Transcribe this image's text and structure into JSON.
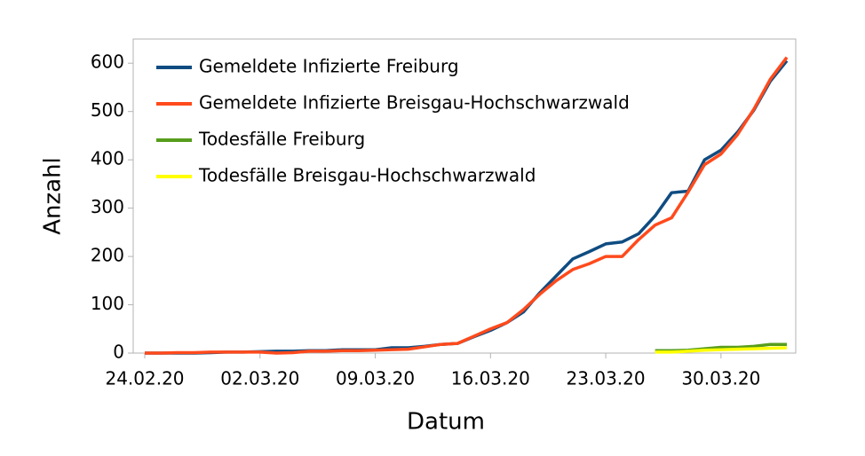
{
  "chart_data": {
    "type": "line",
    "xlabel": "Datum",
    "ylabel": "Anzahl",
    "categories": [
      "24.02.20",
      null,
      null,
      null,
      null,
      null,
      null,
      "02.03.20",
      null,
      null,
      null,
      null,
      null,
      null,
      "09.03.20",
      null,
      null,
      null,
      null,
      null,
      null,
      "16.03.20",
      null,
      null,
      null,
      null,
      null,
      null,
      "23.03.20",
      null,
      null,
      null,
      null,
      null,
      null,
      "30.03.20",
      null,
      null,
      null,
      null
    ],
    "series": [
      {
        "name": "Gemeldete Infizierte Freiburg",
        "color": "#0f4c81",
        "values": [
          0,
          0,
          0,
          0,
          1,
          2,
          2,
          3,
          4,
          4,
          5,
          5,
          7,
          7,
          7,
          11,
          11,
          14,
          18,
          20,
          34,
          47,
          63,
          85,
          125,
          160,
          195,
          210,
          226,
          230,
          247,
          284,
          332,
          335,
          400,
          420,
          457,
          503,
          563,
          605
        ]
      },
      {
        "name": "Gemeldete Infizierte Breisgau-Hochschwarzwald",
        "color": "#ff4a1c",
        "values": [
          0,
          0,
          1,
          1,
          2,
          2,
          2,
          2,
          0,
          1,
          4,
          4,
          5,
          5,
          6,
          7,
          8,
          13,
          18,
          20,
          35,
          50,
          63,
          90,
          122,
          150,
          173,
          185,
          200,
          200,
          235,
          265,
          280,
          333,
          390,
          412,
          452,
          505,
          567,
          612
        ]
      },
      {
        "name": "Todesfälle Freiburg",
        "color": "#579d1c",
        "values": [
          null,
          null,
          null,
          null,
          null,
          null,
          null,
          null,
          null,
          null,
          null,
          null,
          null,
          null,
          null,
          null,
          null,
          null,
          null,
          null,
          null,
          null,
          null,
          null,
          null,
          null,
          null,
          null,
          null,
          null,
          null,
          5,
          5,
          6,
          9,
          12,
          12,
          14,
          18,
          18
        ]
      },
      {
        "name": "Todesfälle Breisgau-Hochschwarzwald",
        "color": "#ffff00",
        "values": [
          null,
          null,
          null,
          null,
          null,
          null,
          null,
          null,
          null,
          null,
          null,
          null,
          null,
          null,
          null,
          null,
          null,
          null,
          null,
          null,
          null,
          null,
          null,
          null,
          null,
          null,
          null,
          null,
          null,
          null,
          null,
          2,
          2,
          4,
          6,
          7,
          8,
          9,
          10,
          11
        ]
      }
    ],
    "ylim": [
      0,
      650
    ],
    "yticks": [
      0,
      100,
      200,
      300,
      400,
      500,
      600
    ],
    "legend": "upper left"
  }
}
